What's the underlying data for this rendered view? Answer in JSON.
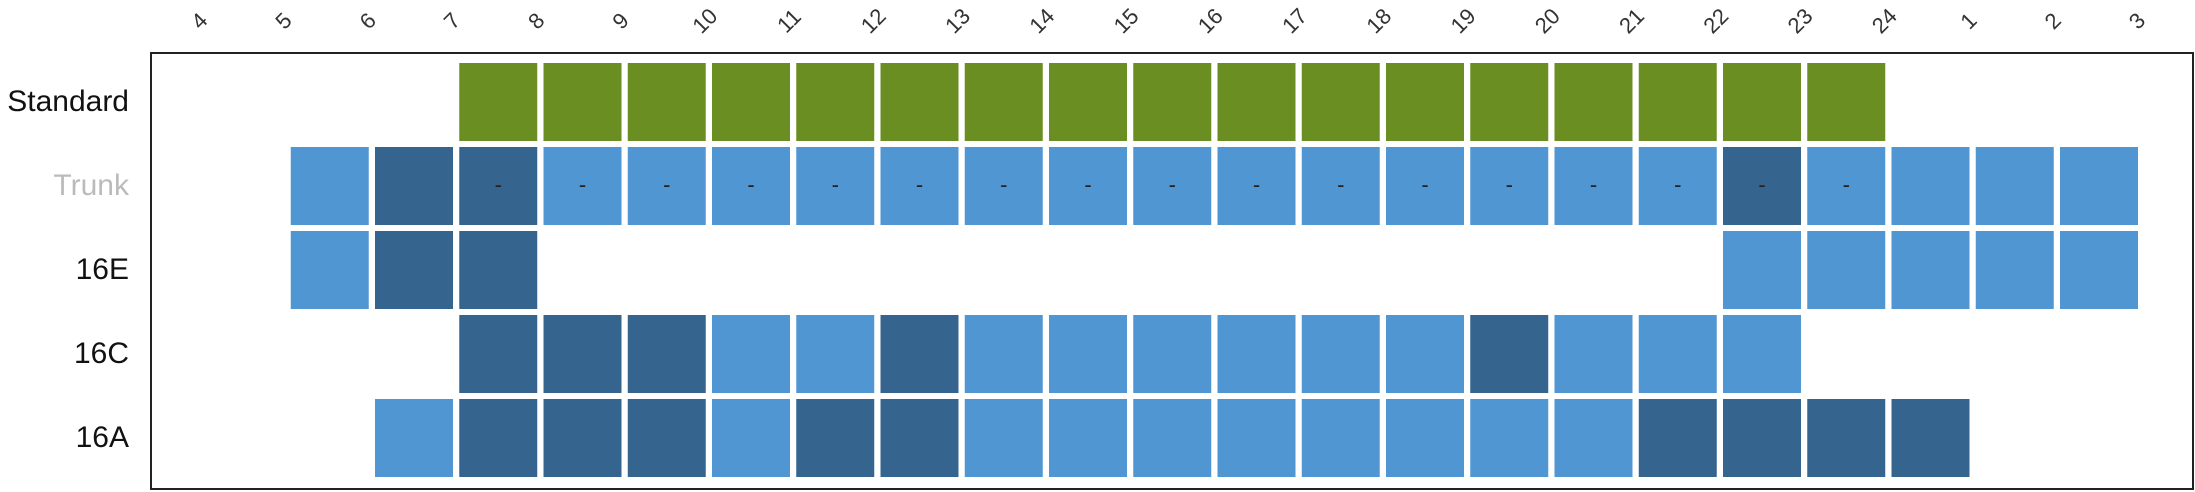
{
  "chart_data": {
    "type": "heatmap",
    "columns": [
      "4",
      "5",
      "6",
      "7",
      "8",
      "9",
      "10",
      "11",
      "12",
      "13",
      "14",
      "15",
      "16",
      "17",
      "18",
      "19",
      "20",
      "21",
      "22",
      "23",
      "24",
      "1",
      "2",
      "3"
    ],
    "colors": {
      "standard": "#6b8e23",
      "light": "#5096d2",
      "dark": "#35648e",
      "frame": "#222222",
      "label_default": "#111111",
      "label_muted": "#bbbbbb"
    },
    "rows": [
      {
        "label": "Standard",
        "label_muted": false,
        "cells": [
          "",
          "",
          "",
          "s",
          "s",
          "s",
          "s",
          "s",
          "s",
          "s",
          "s",
          "s",
          "s",
          "s",
          "s",
          "s",
          "s",
          "s",
          "s",
          "s",
          "",
          "",
          "",
          ""
        ],
        "text": [
          "",
          "",
          "",
          "",
          "",
          "",
          "",
          "",
          "",
          "",
          "",
          "",
          "",
          "",
          "",
          "",
          "",
          "",
          "",
          "",
          "",
          "",
          "",
          ""
        ]
      },
      {
        "label": "Trunk",
        "label_muted": true,
        "cells": [
          "",
          "l",
          "d",
          "d",
          "l",
          "l",
          "l",
          "l",
          "l",
          "l",
          "l",
          "l",
          "l",
          "l",
          "l",
          "l",
          "l",
          "l",
          "d",
          "l",
          "l",
          "l",
          "l",
          ""
        ],
        "text": [
          "",
          "",
          "",
          "-",
          "-",
          "-",
          "-",
          "-",
          "-",
          "-",
          "-",
          "-",
          "-",
          "-",
          "-",
          "-",
          "-",
          "-",
          "-",
          "-",
          "",
          "",
          "",
          ""
        ]
      },
      {
        "label": "16E",
        "label_muted": false,
        "cells": [
          "",
          "l",
          "d",
          "d",
          "",
          "",
          "",
          "",
          "",
          "",
          "",
          "",
          "",
          "",
          "",
          "",
          "",
          "",
          "l",
          "l",
          "l",
          "l",
          "l",
          ""
        ],
        "text": [
          "",
          "",
          "",
          "",
          "",
          "",
          "",
          "",
          "",
          "",
          "",
          "",
          "",
          "",
          "",
          "",
          "",
          "",
          "",
          "",
          "",
          "",
          "",
          ""
        ]
      },
      {
        "label": "16C",
        "label_muted": false,
        "cells": [
          "",
          "",
          "",
          "d",
          "d",
          "d",
          "l",
          "l",
          "d",
          "l",
          "l",
          "l",
          "l",
          "l",
          "l",
          "d",
          "l",
          "l",
          "l",
          "",
          "",
          "",
          "",
          ""
        ],
        "text": [
          "",
          "",
          "",
          "",
          "",
          "",
          "",
          "",
          "",
          "",
          "",
          "",
          "",
          "",
          "",
          "",
          "",
          "",
          "",
          "",
          "",
          "",
          "",
          ""
        ]
      },
      {
        "label": "16A",
        "label_muted": false,
        "cells": [
          "",
          "",
          "l",
          "d",
          "d",
          "d",
          "l",
          "d",
          "d",
          "l",
          "l",
          "l",
          "l",
          "l",
          "l",
          "l",
          "l",
          "d",
          "d",
          "d",
          "d",
          "",
          "",
          ""
        ],
        "text": [
          "",
          "",
          "",
          "",
          "",
          "",
          "",
          "",
          "",
          "",
          "",
          "",
          "",
          "",
          "",
          "",
          "",
          "",
          "",
          "",
          "",
          "",
          "",
          ""
        ]
      }
    ]
  }
}
